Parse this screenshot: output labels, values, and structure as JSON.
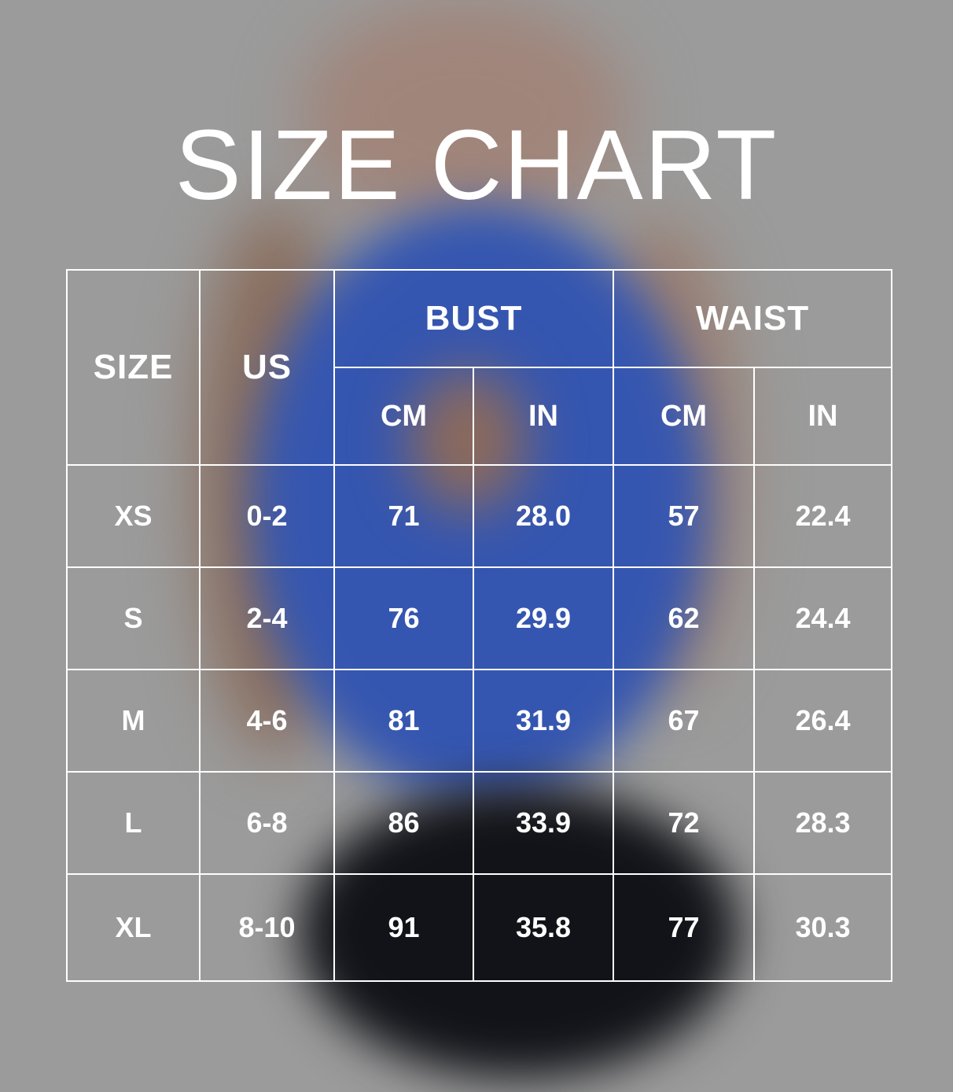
{
  "title": "SIZE CHART",
  "colors": {
    "background": "#9b9b9b",
    "text": "#ffffff",
    "lines": "#ffffff",
    "top_blue": "#3556b0"
  },
  "table": {
    "headers": {
      "size": "SIZE",
      "us": "US",
      "bust": "BUST",
      "waist": "WAIST"
    },
    "subheaders": [
      "CM",
      "IN",
      "CM",
      "IN"
    ],
    "rows": [
      [
        "XS",
        "0-2",
        "71",
        "28.0",
        "57",
        "22.4"
      ],
      [
        "S",
        "2-4",
        "76",
        "29.9",
        "62",
        "24.4"
      ],
      [
        "M",
        "4-6",
        "81",
        "31.9",
        "67",
        "26.4"
      ],
      [
        "L",
        "6-8",
        "86",
        "33.9",
        "72",
        "28.3"
      ],
      [
        "XL",
        "8-10",
        "91",
        "35.8",
        "77",
        "30.3"
      ]
    ]
  }
}
